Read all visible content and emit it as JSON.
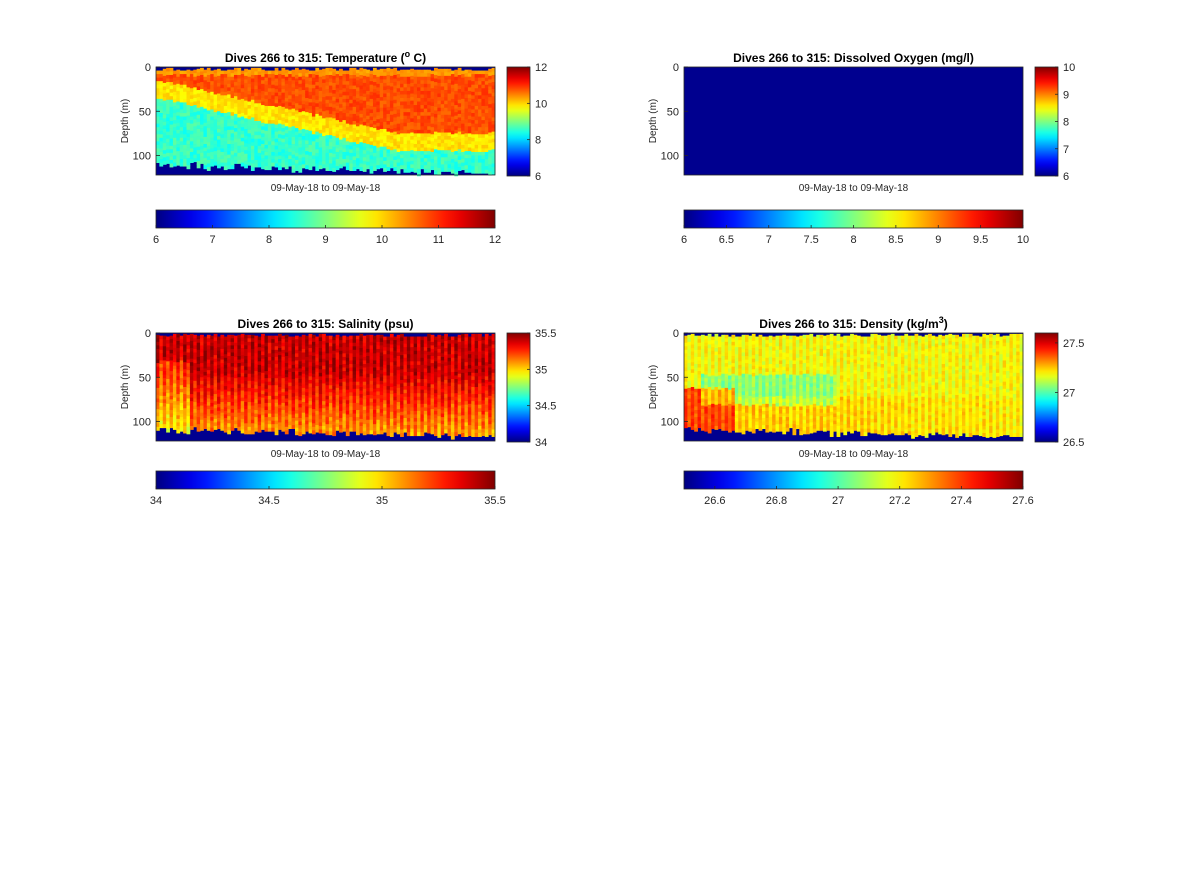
{
  "chart_data": [
    {
      "type": "heatmap",
      "title": "Dives 266 to 315: Temperature (",
      "title_sup": "o",
      "title_tail": " C)",
      "ylabel": "Depth (m)",
      "xlabel": "09-May-18 to 09-May-18",
      "ylim": [
        0,
        122
      ],
      "yticks": [
        "0",
        "50",
        "100"
      ],
      "dives": [
        266,
        315
      ],
      "clim": [
        6,
        12
      ],
      "side_colorbar_ticks": [
        "6",
        "8",
        "10",
        "12"
      ],
      "bottom_colorbar_ticks": [
        "6",
        "7",
        "8",
        "9",
        "10",
        "11",
        "12"
      ],
      "profile": {
        "surface_value": 10.2,
        "mid_value": 10.8,
        "deep_value": 8.3,
        "thermocline_start_m": 25,
        "thermocline_end_m": 85,
        "bottom_depth_start_m": 104,
        "bottom_depth_end_m": 119
      }
    },
    {
      "type": "heatmap",
      "title": "Dives 266 to 315: Dissolved Oxygen (mg/l)",
      "ylabel": "Depth (m)",
      "xlabel": "09-May-18 to 09-May-18",
      "ylim": [
        0,
        122
      ],
      "yticks": [
        "0",
        "50",
        "100"
      ],
      "dives": [
        266,
        315
      ],
      "clim": [
        6,
        10
      ],
      "side_colorbar_ticks": [
        "6",
        "7",
        "8",
        "9",
        "10"
      ],
      "bottom_colorbar_ticks": [
        "6",
        "6.5",
        "7",
        "7.5",
        "8",
        "8.5",
        "9",
        "9.5",
        "10"
      ],
      "uniform_value": 6
    },
    {
      "type": "heatmap",
      "title": "Dives 266 to 315: Salinity (psu)",
      "ylabel": "Depth (m)",
      "xlabel": "09-May-18 to 09-May-18",
      "ylim": [
        0,
        122
      ],
      "yticks": [
        "0",
        "50",
        "100"
      ],
      "dives": [
        266,
        315
      ],
      "clim": [
        34,
        35.5
      ],
      "side_colorbar_ticks": [
        "34",
        "34.5",
        "35",
        "35.5"
      ],
      "bottom_colorbar_ticks": [
        "34",
        "34.5",
        "35",
        "35.5"
      ],
      "profile": {
        "surface_value": 35.38,
        "deep_value": 35.1,
        "bottom_depth_start_m": 104,
        "bottom_depth_end_m": 115
      }
    },
    {
      "type": "heatmap",
      "title": "Dives 266 to 315: Density (kg/m",
      "title_sup": "3",
      "title_tail": ")",
      "ylabel": "Depth (m)",
      "xlabel": "09-May-18 to 09-May-18",
      "ylim": [
        0,
        122
      ],
      "yticks": [
        "0",
        "50",
        "100"
      ],
      "dives": [
        266,
        315
      ],
      "clim": [
        26.5,
        27.6
      ],
      "side_colorbar_ticks": [
        "26.5",
        "27",
        "27.5"
      ],
      "bottom_colorbar_ticks": [
        "26.6",
        "26.8",
        "27",
        "27.2",
        "27.4",
        "27.6"
      ],
      "profile": {
        "surface_value": 27.18,
        "deep_value": 27.3,
        "bottom_depth_start_m": 104,
        "bottom_depth_end_m": 115
      }
    }
  ],
  "colors": {
    "background_fill": "#00008f",
    "axes_edge": "#262626"
  }
}
